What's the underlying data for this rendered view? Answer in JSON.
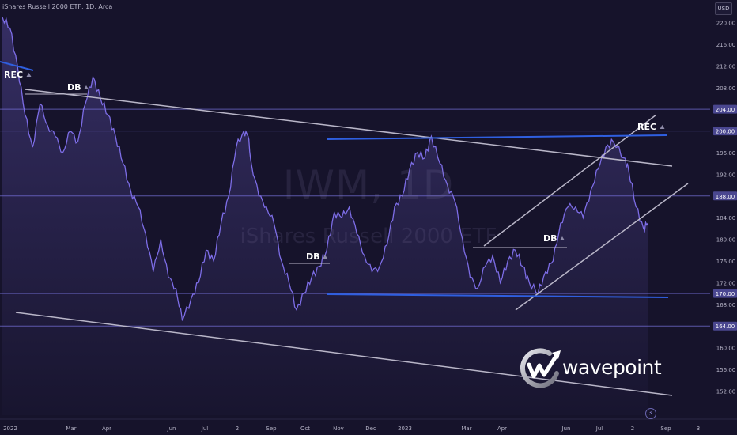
{
  "header": {
    "title": "iShares Russell 2000 ETF, 1D, Arca"
  },
  "currency": "USD",
  "watermark": {
    "symbol": "IWM, 1D",
    "name": "iShares Russell 2000 ETF"
  },
  "logo": {
    "text": "wavepoint"
  },
  "colors": {
    "background": "#16132b",
    "price_line": "#7d6de6",
    "area_fill": "#7d6de6",
    "level_line": "#5a56a8",
    "blue_trend": "#2f5fe0",
    "grey_trend": "#b9b6c8",
    "label_bg": "#4a4790"
  },
  "chart_data": {
    "type": "line",
    "ylim": [
      149,
      223
    ],
    "y_ticks": [
      152,
      156,
      160,
      164,
      168,
      172,
      176,
      180,
      184,
      188,
      192,
      196,
      200,
      204,
      208,
      212,
      216,
      220
    ],
    "x_ticks": [
      "2022",
      "Mar",
      "Apr",
      "Jun",
      "Jul",
      "2",
      "Sep",
      "Oct",
      "Nov",
      "Dec",
      "2023",
      "Mar",
      "Apr",
      "Jun",
      "Jul",
      "2",
      "Sep",
      "3"
    ],
    "price_labels": [
      "204.00",
      "200.00",
      "188.00",
      "170.00",
      "164.00"
    ],
    "price_levels": [
      204,
      200,
      188,
      170,
      164
    ],
    "annotations": [
      "REC",
      "DB",
      "DB",
      "DB",
      "REC"
    ],
    "series": [
      {
        "x": [
          "2021-12-31",
          "2022-01-07",
          "2022-01-14",
          "2022-01-21",
          "2022-01-28",
          "2022-02-04",
          "2022-02-11",
          "2022-02-18",
          "2022-02-25",
          "2022-03-04",
          "2022-03-11",
          "2022-03-18",
          "2022-03-25",
          "2022-04-01",
          "2022-04-08",
          "2022-04-15",
          "2022-04-22",
          "2022-04-29",
          "2022-05-06",
          "2022-05-13",
          "2022-05-20",
          "2022-05-27",
          "2022-06-03",
          "2022-06-10",
          "2022-06-16",
          "2022-06-24",
          "2022-07-01",
          "2022-07-08",
          "2022-07-15",
          "2022-07-22",
          "2022-07-29",
          "2022-08-05",
          "2022-08-12",
          "2022-08-16",
          "2022-08-19",
          "2022-08-26",
          "2022-09-02",
          "2022-09-09",
          "2022-09-16",
          "2022-09-23",
          "2022-09-30",
          "2022-10-07",
          "2022-10-14",
          "2022-10-21",
          "2022-10-28",
          "2022-11-04",
          "2022-11-11",
          "2022-11-18",
          "2022-11-25",
          "2022-12-02",
          "2022-12-09",
          "2022-12-16",
          "2022-12-23",
          "2022-12-30",
          "2023-01-06",
          "2023-01-13",
          "2023-01-20",
          "2023-01-27",
          "2023-02-02",
          "2023-02-10",
          "2023-02-17",
          "2023-02-24",
          "2023-03-03",
          "2023-03-10",
          "2023-03-17",
          "2023-03-24",
          "2023-03-31",
          "2023-04-07",
          "2023-04-14",
          "2023-04-21",
          "2023-04-28",
          "2023-05-04",
          "2023-05-12",
          "2023-05-19",
          "2023-05-26",
          "2023-06-02",
          "2023-06-09",
          "2023-06-16",
          "2023-06-23",
          "2023-06-30",
          "2023-07-07",
          "2023-07-14",
          "2023-07-21",
          "2023-07-31",
          "2023-08-04",
          "2023-08-11",
          "2023-08-18",
          "2023-08-22"
        ],
        "values": [
          221,
          219,
          212,
          203,
          197,
          205,
          201,
          199,
          196,
          200,
          198,
          205,
          210,
          206,
          203,
          199,
          194,
          189,
          186,
          181,
          174,
          180,
          173,
          171,
          165,
          169,
          172,
          178,
          176,
          183,
          188,
          197,
          200,
          199,
          194,
          188,
          186,
          183,
          176,
          172,
          167,
          170,
          173,
          175,
          178,
          185,
          184,
          186,
          181,
          177,
          174,
          175,
          179,
          186,
          188,
          193,
          196,
          195,
          199,
          194,
          190,
          187,
          180,
          173,
          171,
          175,
          177,
          172,
          176,
          178,
          175,
          172,
          170,
          174,
          176,
          183,
          186,
          186,
          184,
          189,
          193,
          197,
          198,
          195,
          193,
          186,
          182,
          183
        ]
      }
    ]
  }
}
